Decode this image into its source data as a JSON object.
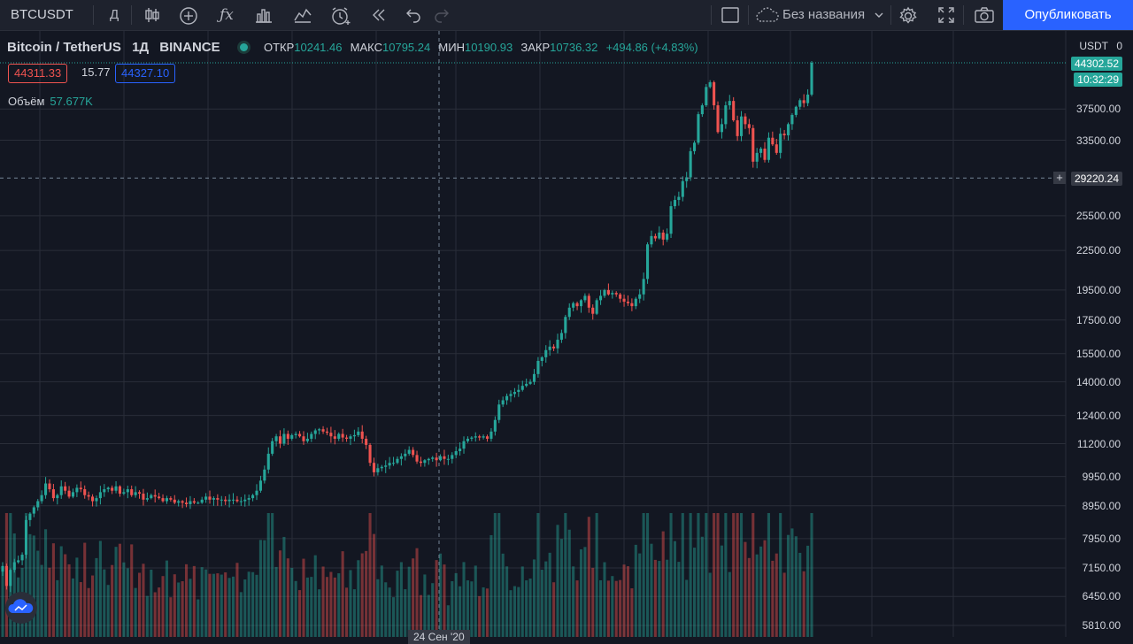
{
  "toolbar": {
    "symbol": "BTCUSDT",
    "interval": "Д",
    "layout_name": "Без названия",
    "publish_label": "Опубликовать"
  },
  "legend": {
    "title": "Bitcoin / TetherUS",
    "interval": "1Д",
    "exchange": "BINANCE",
    "open_label": "ОТКР",
    "open": "10241.46",
    "high_label": "МАКС",
    "high": "10795.24",
    "low_label": "МИН",
    "low": "10190.93",
    "close_label": "ЗАКР",
    "close": "10736.32",
    "change": "+494.86 (+4.83%)"
  },
  "quotes": {
    "sell": "44311.33",
    "spread": "15.77",
    "buy": "44327.10"
  },
  "volume": {
    "label": "Объём",
    "value": "57.677K"
  },
  "price_axis": {
    "unit": "USDT",
    "scale_label": "0",
    "current_price": "44302.52",
    "countdown": "10:32:29",
    "crosshair_price": "29220.24",
    "ticks": [
      "37500.00",
      "33500.00",
      "25500.00",
      "22500.00",
      "19500.00",
      "17500.00",
      "15500.00",
      "14000.00",
      "12400.00",
      "11200.00",
      "9950.00",
      "8950.00",
      "7950.00",
      "7150.00",
      "6450.00",
      "5810.00"
    ]
  },
  "time_axis": {
    "crosshair_date": "24 Сен '20"
  },
  "colors": {
    "up": "#26a69a",
    "down": "#ef5350",
    "background": "#131722",
    "grid": "#2a2e39",
    "accent": "#2962ff"
  },
  "chart_data": {
    "type": "candlestick",
    "title": "Bitcoin / TetherUS",
    "scale": "log",
    "ylim": [
      5810,
      46000
    ],
    "x_label_visible": "24 Сен '20",
    "series": [
      {
        "name": "BTCUSDT",
        "values": [
          7200,
          6700,
          7100,
          7300,
          7350,
          7500,
          8500,
          8700,
          8900,
          9100,
          9300,
          9700,
          9500,
          9200,
          9300,
          9600,
          9450,
          9250,
          9400,
          9550,
          9500,
          9300,
          9250,
          9100,
          9200,
          9400,
          9500,
          9550,
          9450,
          9600,
          9350,
          9400,
          9500,
          9300,
          9400,
          9350,
          9150,
          9200,
          9300,
          9250,
          9200,
          9100,
          9200,
          9150,
          9050,
          9100,
          9050,
          9000,
          9100,
          9050,
          9050,
          9150,
          9250,
          9150,
          9200,
          9150,
          9150,
          9100,
          9150,
          9150,
          9100,
          9100,
          9150,
          9200,
          9300,
          9450,
          9800,
          10200,
          10800,
          11300,
          11500,
          11200,
          11600,
          11400,
          11550,
          11600,
          11500,
          11300,
          11400,
          11600,
          11750,
          11800,
          11700,
          11650,
          11500,
          11400,
          11600,
          11450,
          11400,
          11500,
          11550,
          11700,
          11400,
          11150,
          10450,
          10100,
          10250,
          10300,
          10350,
          10450,
          10450,
          10600,
          10700,
          10800,
          10950,
          10750,
          10500,
          10450,
          10550,
          10600,
          10650,
          10550,
          10700,
          10600,
          10600,
          10750,
          10900,
          11000,
          11300,
          11400,
          11450,
          11500,
          11450,
          11500,
          11400,
          11700,
          12200,
          12900,
          13100,
          13300,
          13400,
          13500,
          13600,
          13800,
          13900,
          14000,
          14400,
          15100,
          15300,
          15700,
          15900,
          15800,
          16300,
          16700,
          17700,
          18300,
          18600,
          18400,
          18800,
          19100,
          18300,
          17900,
          18800,
          19100,
          19500,
          19200,
          19300,
          19200,
          18900,
          18700,
          18600,
          18400,
          18900,
          19200,
          20300,
          23000,
          23700,
          23500,
          24000,
          23400,
          23900,
          26400,
          27000,
          27300,
          28900,
          29300,
          32200,
          33200,
          36800,
          38000,
          40600,
          41300,
          38000,
          34500,
          35500,
          38000,
          38600,
          36000,
          34000,
          36500,
          35500,
          35000,
          31000,
          32000,
          32500,
          31200,
          33800,
          33000,
          32000,
          34300,
          34100,
          35500,
          36700,
          37800,
          38700,
          38300,
          39500,
          44300
        ]
      }
    ],
    "volume": {
      "visible_max": 57677
    }
  }
}
